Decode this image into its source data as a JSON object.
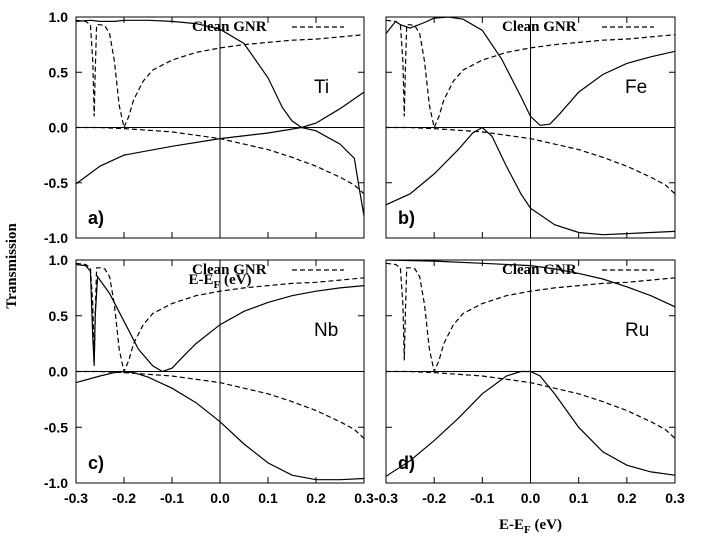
{
  "chart_data": [
    {
      "type": "line",
      "panel_label": "a)",
      "element": "Ti",
      "legend": "Clean GNR",
      "xlabel": "E-E",
      "xlabel_sub": "F",
      "xlabel_unit": " (eV)",
      "ylabel": "Transmission",
      "xlim": [
        -0.3,
        0.3
      ],
      "ylim": [
        -1.0,
        1.0
      ],
      "x_ticks": [
        "-0.3",
        "-0.2",
        "-0.1",
        "0.0",
        "0.1",
        "0.2",
        "0.3"
      ],
      "y_ticks": [
        "1.0",
        "0.5",
        "0.0",
        "-0.5",
        "-1.0"
      ],
      "series": [
        {
          "style": "solid",
          "x": [
            -0.3,
            -0.27,
            -0.25,
            -0.22,
            -0.2,
            -0.15,
            -0.1,
            -0.05,
            0.0,
            0.05,
            0.1,
            0.13,
            0.15,
            0.17,
            0.2,
            0.25,
            0.3
          ],
          "y": [
            0.96,
            0.97,
            0.96,
            0.96,
            0.97,
            0.97,
            0.96,
            0.94,
            0.89,
            0.76,
            0.45,
            0.18,
            0.06,
            0.0,
            0.04,
            0.17,
            0.32
          ]
        },
        {
          "style": "solid",
          "x": [
            -0.3,
            -0.25,
            -0.2,
            -0.1,
            0.0,
            0.1,
            0.17,
            0.2,
            0.25,
            0.28,
            0.29,
            0.3
          ],
          "y": [
            -0.51,
            -0.35,
            -0.25,
            -0.17,
            -0.1,
            -0.05,
            0.0,
            -0.03,
            -0.15,
            -0.28,
            -0.55,
            -0.8
          ]
        },
        {
          "style": "dashed",
          "x": [
            -0.3,
            -0.28,
            -0.27,
            -0.265,
            -0.262,
            -0.26,
            -0.257,
            -0.25,
            -0.24,
            -0.23,
            -0.22,
            -0.21,
            -0.2,
            -0.19,
            -0.18,
            -0.16,
            -0.14,
            -0.1,
            -0.05,
            0.0,
            0.05,
            0.1,
            0.15,
            0.2,
            0.25,
            0.3
          ],
          "y": [
            0.97,
            0.96,
            0.93,
            0.6,
            0.1,
            0.5,
            0.93,
            0.93,
            0.92,
            0.85,
            0.6,
            0.2,
            0.0,
            0.1,
            0.25,
            0.42,
            0.52,
            0.61,
            0.68,
            0.72,
            0.75,
            0.77,
            0.79,
            0.8,
            0.82,
            0.84
          ]
        },
        {
          "style": "dashed",
          "x": [
            -0.3,
            -0.25,
            -0.2,
            -0.1,
            0.0,
            0.05,
            0.1,
            0.15,
            0.2,
            0.25,
            0.28,
            0.3
          ],
          "y": [
            0.0,
            0.0,
            -0.01,
            -0.04,
            -0.1,
            -0.15,
            -0.2,
            -0.27,
            -0.35,
            -0.45,
            -0.52,
            -0.6
          ]
        }
      ]
    },
    {
      "type": "line",
      "panel_label": "b)",
      "element": "Fe",
      "legend": "Clean GNR",
      "xlim": [
        -0.3,
        0.3
      ],
      "ylim": [
        -1.0,
        1.0
      ],
      "x_ticks": [
        "-0.3",
        "-0.2",
        "-0.1",
        "0.0",
        "0.1",
        "0.2",
        "0.3"
      ],
      "series": [
        {
          "style": "solid",
          "x": [
            -0.3,
            -0.28,
            -0.27,
            -0.25,
            -0.22,
            -0.2,
            -0.17,
            -0.14,
            -0.1,
            -0.06,
            -0.02,
            0.0,
            0.02,
            0.04,
            0.06,
            0.1,
            0.15,
            0.2,
            0.25,
            0.3
          ],
          "y": [
            0.85,
            0.96,
            0.93,
            0.9,
            0.95,
            0.99,
            1.0,
            0.98,
            0.88,
            0.62,
            0.28,
            0.1,
            0.02,
            0.03,
            0.12,
            0.32,
            0.48,
            0.58,
            0.64,
            0.69
          ]
        },
        {
          "style": "solid",
          "x": [
            -0.3,
            -0.25,
            -0.2,
            -0.15,
            -0.12,
            -0.1,
            -0.08,
            -0.05,
            -0.02,
            0.0,
            0.05,
            0.1,
            0.15,
            0.2,
            0.25,
            0.3
          ],
          "y": [
            -0.7,
            -0.6,
            -0.42,
            -0.2,
            -0.05,
            0.0,
            -0.08,
            -0.35,
            -0.6,
            -0.73,
            -0.88,
            -0.95,
            -0.97,
            -0.96,
            -0.95,
            -0.94
          ]
        },
        {
          "style": "dashed",
          "x": [
            -0.3,
            -0.28,
            -0.27,
            -0.265,
            -0.262,
            -0.26,
            -0.257,
            -0.25,
            -0.24,
            -0.23,
            -0.22,
            -0.21,
            -0.2,
            -0.19,
            -0.18,
            -0.16,
            -0.14,
            -0.1,
            -0.05,
            0.0,
            0.05,
            0.1,
            0.15,
            0.2,
            0.25,
            0.3
          ],
          "y": [
            0.97,
            0.96,
            0.93,
            0.6,
            0.1,
            0.5,
            0.93,
            0.93,
            0.92,
            0.85,
            0.6,
            0.2,
            0.0,
            0.1,
            0.25,
            0.42,
            0.52,
            0.61,
            0.68,
            0.72,
            0.75,
            0.77,
            0.79,
            0.8,
            0.82,
            0.84
          ]
        },
        {
          "style": "dashed",
          "x": [
            -0.3,
            -0.25,
            -0.2,
            -0.1,
            0.0,
            0.05,
            0.1,
            0.15,
            0.2,
            0.25,
            0.28,
            0.3
          ],
          "y": [
            0.0,
            0.0,
            -0.01,
            -0.04,
            -0.1,
            -0.15,
            -0.2,
            -0.27,
            -0.35,
            -0.45,
            -0.52,
            -0.6
          ]
        }
      ]
    },
    {
      "type": "line",
      "panel_label": "c)",
      "element": "Nb",
      "legend": "Clean GNR",
      "xlim": [
        -0.3,
        0.3
      ],
      "ylim": [
        -1.0,
        1.0
      ],
      "x_ticks": [
        "-0.3",
        "-0.2",
        "-0.1",
        "0.0",
        "0.1",
        "0.2",
        "0.3"
      ],
      "y_ticks": [
        "1.0",
        "0.5",
        "0.0",
        "-0.5",
        "-1.0"
      ],
      "series": [
        {
          "style": "solid",
          "x": [
            -0.3,
            -0.28,
            -0.27,
            -0.265,
            -0.262,
            -0.26,
            -0.255,
            -0.25,
            -0.23,
            -0.2,
            -0.17,
            -0.14,
            -0.12,
            -0.1,
            -0.08,
            -0.05,
            0.0,
            0.05,
            0.1,
            0.15,
            0.2,
            0.25,
            0.3
          ],
          "y": [
            0.96,
            0.95,
            0.9,
            0.3,
            0.05,
            0.5,
            0.85,
            0.82,
            0.7,
            0.45,
            0.2,
            0.05,
            0.0,
            0.03,
            0.12,
            0.25,
            0.42,
            0.54,
            0.62,
            0.68,
            0.72,
            0.75,
            0.77
          ]
        },
        {
          "style": "solid",
          "x": [
            -0.3,
            -0.25,
            -0.22,
            -0.2,
            -0.18,
            -0.15,
            -0.1,
            -0.05,
            0.0,
            0.05,
            0.1,
            0.15,
            0.2,
            0.25,
            0.3
          ],
          "y": [
            -0.1,
            -0.04,
            -0.01,
            0.0,
            -0.01,
            -0.05,
            -0.15,
            -0.28,
            -0.45,
            -0.65,
            -0.82,
            -0.93,
            -0.97,
            -0.97,
            -0.96
          ]
        },
        {
          "style": "dashed",
          "x": [
            -0.3,
            -0.28,
            -0.27,
            -0.265,
            -0.262,
            -0.26,
            -0.257,
            -0.25,
            -0.24,
            -0.23,
            -0.22,
            -0.21,
            -0.2,
            -0.19,
            -0.18,
            -0.16,
            -0.14,
            -0.1,
            -0.05,
            0.0,
            0.05,
            0.1,
            0.15,
            0.2,
            0.25,
            0.3
          ],
          "y": [
            0.97,
            0.96,
            0.93,
            0.6,
            0.1,
            0.5,
            0.93,
            0.93,
            0.92,
            0.85,
            0.6,
            0.2,
            0.0,
            0.1,
            0.25,
            0.42,
            0.52,
            0.61,
            0.68,
            0.72,
            0.75,
            0.77,
            0.79,
            0.8,
            0.82,
            0.84
          ]
        },
        {
          "style": "dashed",
          "x": [
            -0.3,
            -0.25,
            -0.2,
            -0.1,
            0.0,
            0.05,
            0.1,
            0.15,
            0.2,
            0.25,
            0.28,
            0.3
          ],
          "y": [
            0.0,
            0.0,
            -0.01,
            -0.04,
            -0.1,
            -0.15,
            -0.2,
            -0.27,
            -0.35,
            -0.45,
            -0.52,
            -0.6
          ]
        }
      ]
    },
    {
      "type": "line",
      "panel_label": "d)",
      "element": "Ru",
      "legend": "Clean GNR",
      "xlabel": "E-E",
      "xlabel_sub": "F",
      "xlabel_unit": " (eV)",
      "xlim": [
        -0.3,
        0.3
      ],
      "ylim": [
        -1.0,
        1.0
      ],
      "x_ticks": [
        "-0.3",
        "-0.2",
        "-0.1",
        "0.0",
        "0.1",
        "0.2",
        "0.3"
      ],
      "series": [
        {
          "style": "solid",
          "x": [
            -0.3,
            -0.2,
            -0.1,
            0.0,
            0.05,
            0.1,
            0.15,
            0.2,
            0.25,
            0.3
          ],
          "y": [
            1.0,
            0.99,
            0.97,
            0.95,
            0.92,
            0.88,
            0.83,
            0.76,
            0.68,
            0.58
          ]
        },
        {
          "style": "solid",
          "x": [
            -0.3,
            -0.25,
            -0.2,
            -0.15,
            -0.1,
            -0.05,
            -0.02,
            0.0,
            0.02,
            0.05,
            0.1,
            0.15,
            0.2,
            0.25,
            0.3
          ],
          "y": [
            -0.94,
            -0.8,
            -0.62,
            -0.42,
            -0.2,
            -0.04,
            0.0,
            0.0,
            -0.04,
            -0.2,
            -0.5,
            -0.72,
            -0.84,
            -0.9,
            -0.93
          ]
        },
        {
          "style": "dashed",
          "x": [
            -0.3,
            -0.28,
            -0.27,
            -0.265,
            -0.262,
            -0.26,
            -0.257,
            -0.25,
            -0.24,
            -0.23,
            -0.22,
            -0.21,
            -0.2,
            -0.19,
            -0.18,
            -0.16,
            -0.14,
            -0.1,
            -0.05,
            0.0,
            0.05,
            0.1,
            0.15,
            0.2,
            0.25,
            0.3
          ],
          "y": [
            0.97,
            0.96,
            0.93,
            0.6,
            0.1,
            0.5,
            0.93,
            0.93,
            0.92,
            0.85,
            0.6,
            0.2,
            0.0,
            0.1,
            0.25,
            0.42,
            0.52,
            0.61,
            0.68,
            0.72,
            0.75,
            0.77,
            0.79,
            0.8,
            0.82,
            0.84
          ]
        },
        {
          "style": "dashed",
          "x": [
            -0.3,
            -0.25,
            -0.2,
            -0.1,
            0.0,
            0.05,
            0.1,
            0.15,
            0.2,
            0.25,
            0.28,
            0.3
          ],
          "y": [
            0.0,
            0.0,
            -0.01,
            -0.04,
            -0.1,
            -0.15,
            -0.2,
            -0.27,
            -0.35,
            -0.45,
            -0.52,
            -0.6
          ]
        }
      ]
    }
  ]
}
